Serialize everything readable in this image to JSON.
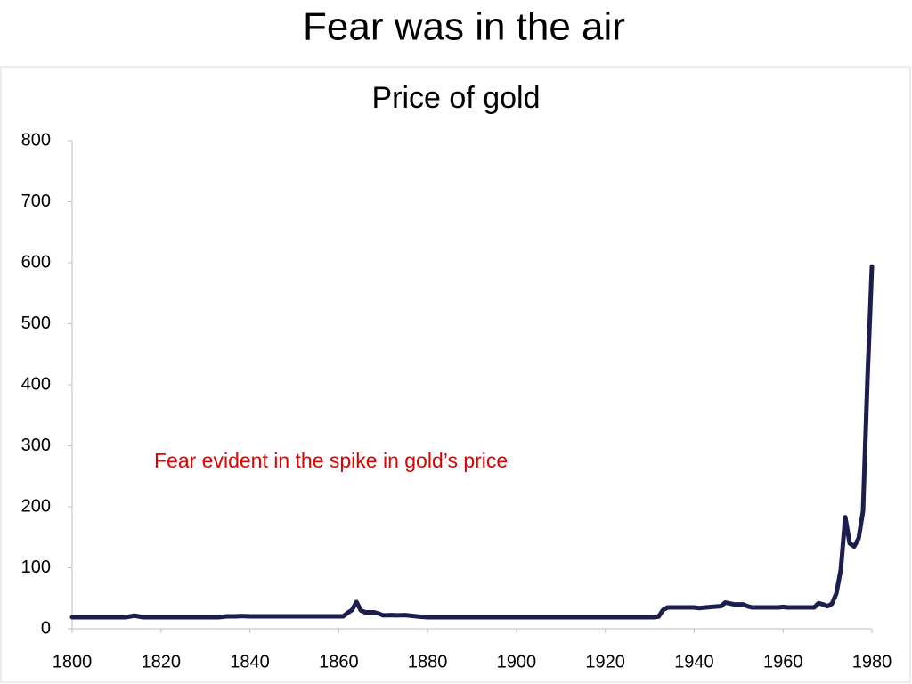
{
  "page_title": "Fear was in the air",
  "chart_data": {
    "type": "line",
    "title": "Price of gold",
    "annotation": "Fear evident in the spike in gold’s price",
    "x": [
      1800,
      1812,
      1814,
      1816,
      1833,
      1835,
      1837,
      1838,
      1840,
      1860,
      1861,
      1862,
      1863,
      1864,
      1865,
      1866,
      1868,
      1869,
      1870,
      1872,
      1873,
      1875,
      1878,
      1880,
      1931,
      1932,
      1933,
      1934,
      1940,
      1941,
      1944,
      1946,
      1947,
      1949,
      1951,
      1952,
      1953,
      1959,
      1960,
      1961,
      1967,
      1968,
      1969,
      1970,
      1971,
      1972,
      1973,
      1974,
      1975,
      1976,
      1977,
      1978,
      1979,
      1980
    ],
    "series": [
      {
        "name": "Price of gold",
        "color": "#1c1f4e",
        "values": [
          19,
          19,
          21.5,
          19,
          19,
          20.5,
          20.5,
          21,
          20.5,
          20.5,
          20.5,
          26,
          31,
          44,
          30,
          27,
          27,
          25,
          22,
          22.5,
          22,
          22.5,
          20,
          19,
          19,
          20,
          31,
          35,
          35,
          34,
          36,
          37,
          43,
          40,
          40,
          37,
          35,
          35,
          36,
          35,
          35,
          42,
          40,
          37,
          41,
          58,
          97,
          183,
          140,
          135,
          148,
          193,
          410,
          594
        ]
      }
    ],
    "xlim": [
      1800,
      1980
    ],
    "xticks": [
      1800,
      1820,
      1840,
      1860,
      1880,
      1900,
      1920,
      1940,
      1960,
      1980
    ],
    "ylim": [
      0,
      800
    ],
    "yticks": [
      0,
      100,
      200,
      300,
      400,
      500,
      600,
      700,
      800
    ]
  }
}
